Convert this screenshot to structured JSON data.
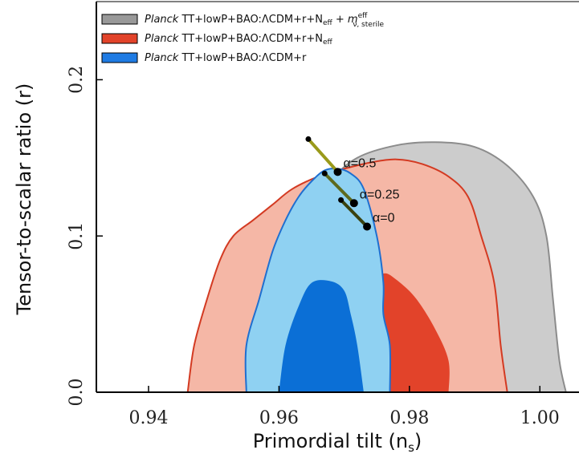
{
  "chart_data": {
    "type": "contour",
    "xlabel": "Primordial tilt (n",
    "xlabel_sub": "s",
    "xlabel_close": ")",
    "ylabel": "Tensor-to-scalar ratio (r)",
    "xlim": [
      0.932,
      1.006
    ],
    "ylim": [
      0.0,
      0.25
    ],
    "x_ticks": [
      0.94,
      0.96,
      0.98,
      1.0
    ],
    "x_tick_labels": [
      "0.94",
      "0.96",
      "0.98",
      "1.00"
    ],
    "y_ticks": [
      0.0,
      0.1,
      0.2
    ],
    "y_tick_labels": [
      "0.0",
      "0.1",
      "0.2"
    ],
    "legend_position": "top",
    "series": [
      {
        "name": "Planck TT+lowP+BAO:ΛCDM+r+N_eff + m_ν,sterile^eff",
        "legend_italic": "Planck",
        "legend_rest": " TT+lowP+BAO:ΛCDM+r+N",
        "legend_sub": "eff",
        "legend_extra": " + m",
        "legend_extra_sup": "eff",
        "legend_extra_sub": "ν, sterile",
        "color_outer": "#cccccc",
        "color_inner": "#a8a8a8",
        "color_swatch": "#999999",
        "outline": "#8c8c8c",
        "outer": [
          [
            0.964,
            0.0
          ],
          [
            0.964,
            0.06
          ],
          [
            0.965,
            0.11
          ],
          [
            0.968,
            0.135
          ],
          [
            0.972,
            0.15
          ],
          [
            0.978,
            0.158
          ],
          [
            0.984,
            0.16
          ],
          [
            0.99,
            0.157
          ],
          [
            0.995,
            0.145
          ],
          [
            0.999,
            0.125
          ],
          [
            1.001,
            0.1
          ],
          [
            1.002,
            0.06
          ],
          [
            1.003,
            0.02
          ],
          [
            1.004,
            0.0
          ]
        ]
      },
      {
        "name": "Planck TT+lowP+BAO:ΛCDM+r+N_eff",
        "legend_italic": "Planck",
        "legend_rest": " TT+lowP+BAO:ΛCDM+r+N",
        "legend_sub": "eff",
        "color_outer": "#f5b7a6",
        "color_inner": "#e2432a",
        "color_swatch": "#e2432a",
        "outline": "#d33a22",
        "outer": [
          [
            0.946,
            0.0
          ],
          [
            0.947,
            0.03
          ],
          [
            0.949,
            0.06
          ],
          [
            0.951,
            0.085
          ],
          [
            0.953,
            0.1
          ],
          [
            0.956,
            0.11
          ],
          [
            0.959,
            0.12
          ],
          [
            0.962,
            0.13
          ],
          [
            0.966,
            0.138
          ],
          [
            0.97,
            0.143
          ],
          [
            0.974,
            0.147
          ],
          [
            0.978,
            0.149
          ],
          [
            0.982,
            0.146
          ],
          [
            0.986,
            0.138
          ],
          [
            0.989,
            0.125
          ],
          [
            0.991,
            0.1
          ],
          [
            0.993,
            0.07
          ],
          [
            0.994,
            0.03
          ],
          [
            0.995,
            0.0
          ]
        ],
        "inner": [
          [
            0.972,
            0.0
          ],
          [
            0.972,
            0.04
          ],
          [
            0.974,
            0.068
          ],
          [
            0.976,
            0.076
          ],
          [
            0.978,
            0.072
          ],
          [
            0.981,
            0.06
          ],
          [
            0.984,
            0.04
          ],
          [
            0.986,
            0.02
          ],
          [
            0.986,
            0.0
          ]
        ]
      },
      {
        "name": "Planck TT+lowP+BAO:ΛCDM+r",
        "legend_italic": "Planck",
        "legend_rest": " TT+lowP+BAO:ΛCDM+r",
        "color_outer": "#8fd1f2",
        "color_inner": "#0b6fd6",
        "color_swatch": "#1f7be3",
        "outline": "#1f6fd0",
        "outer": [
          [
            0.955,
            0.0
          ],
          [
            0.955,
            0.03
          ],
          [
            0.957,
            0.06
          ],
          [
            0.959,
            0.09
          ],
          [
            0.961,
            0.11
          ],
          [
            0.963,
            0.125
          ],
          [
            0.965,
            0.135
          ],
          [
            0.967,
            0.142
          ],
          [
            0.969,
            0.143
          ],
          [
            0.971,
            0.14
          ],
          [
            0.973,
            0.13
          ],
          [
            0.975,
            0.1
          ],
          [
            0.976,
            0.07
          ],
          [
            0.976,
            0.05
          ],
          [
            0.977,
            0.03
          ],
          [
            0.977,
            0.0
          ]
        ],
        "inner": [
          [
            0.96,
            0.0
          ],
          [
            0.961,
            0.03
          ],
          [
            0.963,
            0.055
          ],
          [
            0.965,
            0.07
          ],
          [
            0.968,
            0.071
          ],
          [
            0.97,
            0.065
          ],
          [
            0.971,
            0.05
          ],
          [
            0.972,
            0.03
          ],
          [
            0.973,
            0.0
          ]
        ]
      }
    ],
    "annotations": [
      {
        "label": "α=0.5",
        "line_color": "#9a9a1a",
        "start": [
          0.9645,
          0.162
        ],
        "end": [
          0.969,
          0.141
        ]
      },
      {
        "label": "α=0.25",
        "line_color": "#5d6a1e",
        "start": [
          0.967,
          0.14
        ],
        "end": [
          0.9715,
          0.121
        ]
      },
      {
        "label": "α=0",
        "line_color": "#3a4210",
        "start": [
          0.9695,
          0.123
        ],
        "end": [
          0.9735,
          0.106
        ]
      }
    ]
  }
}
